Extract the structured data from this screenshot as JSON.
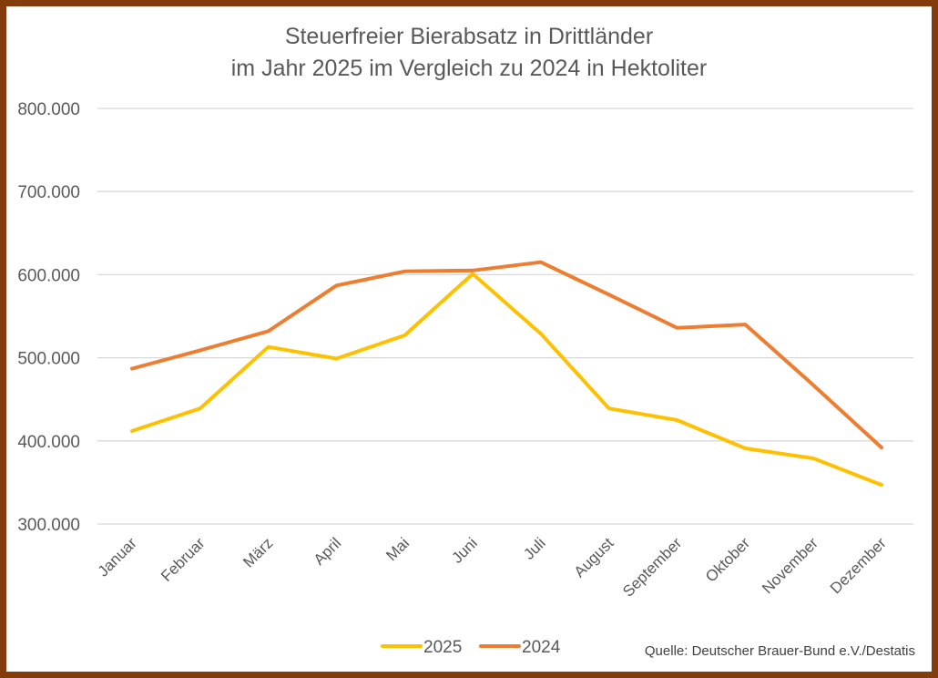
{
  "chart_data": {
    "type": "line",
    "title": [
      "Steuerfreier Bierabsatz in Drittländer",
      "im Jahr 2025 im Vergleich zu 2024 in Hektoliter"
    ],
    "xlabel": "",
    "ylabel": "",
    "categories": [
      "Januar",
      "Februar",
      "März",
      "April",
      "Mai",
      "Juni",
      "Juli",
      "August",
      "September",
      "Oktober",
      "November",
      "Dezember"
    ],
    "ylim": [
      300000,
      800000
    ],
    "yticks": [
      300000,
      400000,
      500000,
      600000,
      700000,
      800000
    ],
    "ytick_labels": [
      "300.000",
      "400.000",
      "500.000",
      "600.000",
      "700.000",
      "800.000"
    ],
    "grid": true,
    "legend_position": "bottom",
    "series": [
      {
        "name": "2025",
        "color": "#FFC000",
        "values": [
          412000,
          439000,
          513000,
          499000,
          527000,
          601000,
          529000,
          439000,
          425000,
          391000,
          379000,
          347000
        ]
      },
      {
        "name": "2024",
        "color": "#ED7D31",
        "values": [
          487000,
          509000,
          532000,
          587000,
          604000,
          605000,
          615000,
          576000,
          536000,
          540000,
          467000,
          392000
        ]
      }
    ],
    "source": "Quelle: Deutscher Brauer-Bund e.V./Destatis"
  },
  "frame_color": "#843C0C",
  "gridline_color": "#D9D9D9"
}
